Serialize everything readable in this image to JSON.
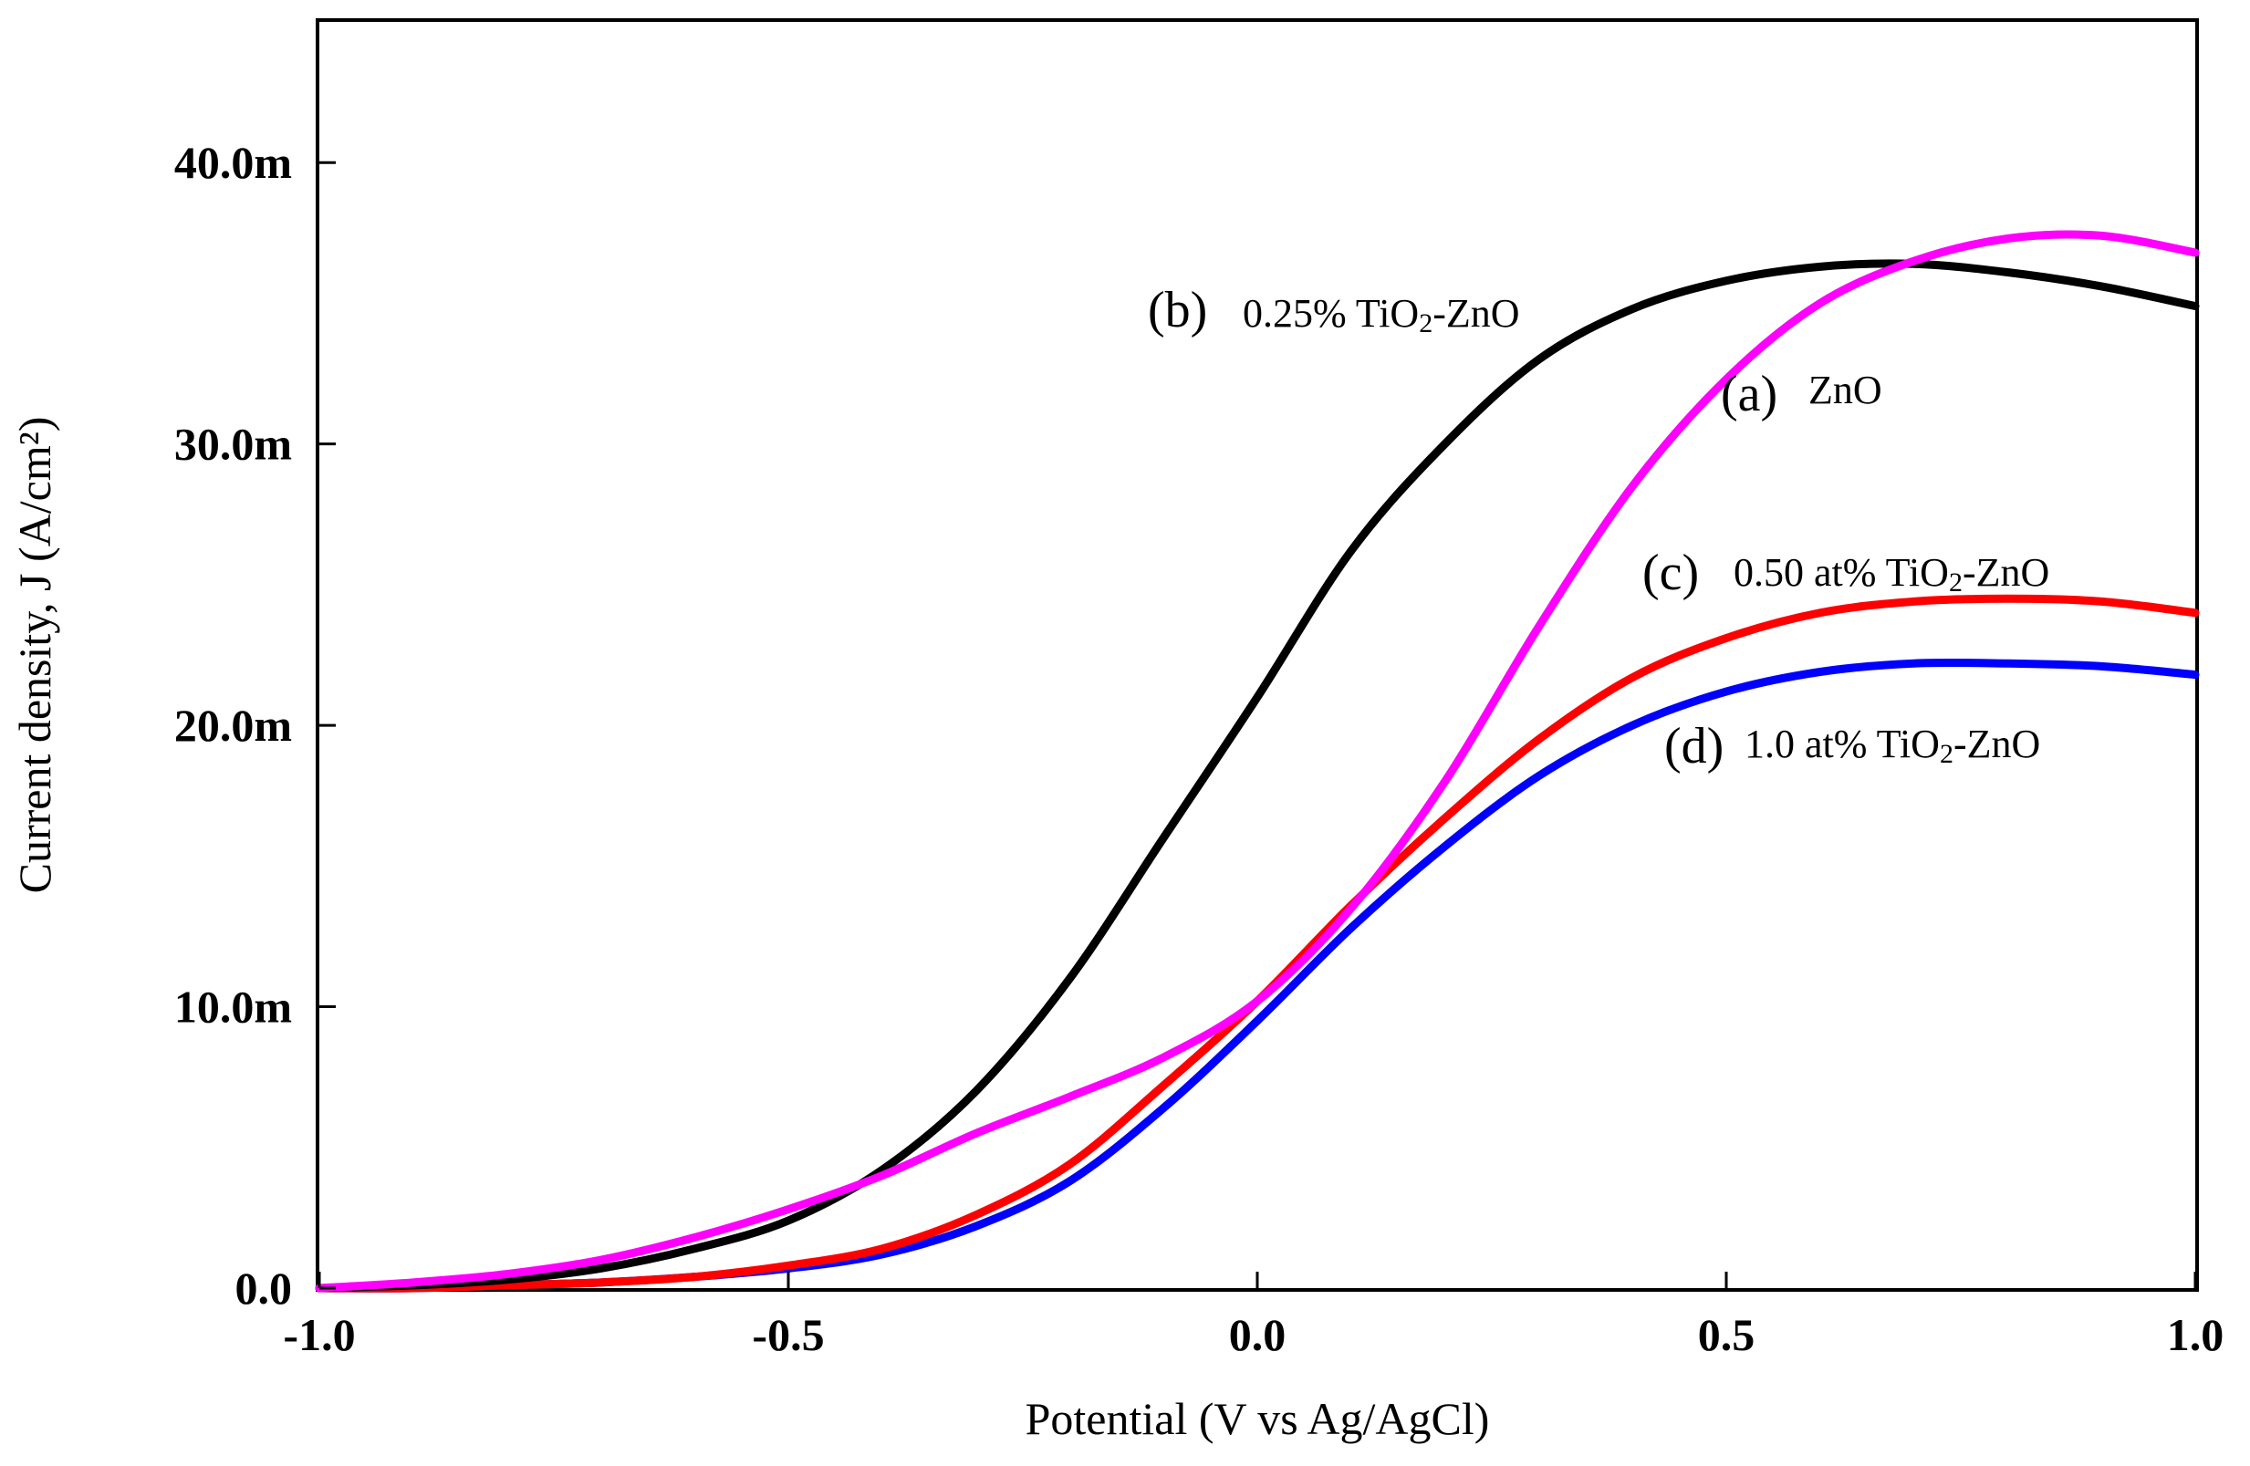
{
  "chart_data": {
    "type": "line",
    "title": "",
    "xlabel": "Potential (V vs Ag/AgCl)",
    "ylabel": "Current density, J (A/cm²)",
    "xlim": [
      -1.0,
      1.0
    ],
    "ylim": [
      0.0,
      0.045
    ],
    "grid": false,
    "x_ticks": [
      {
        "value": -1.0,
        "label": "-1.0"
      },
      {
        "value": -0.5,
        "label": "-0.5"
      },
      {
        "value": 0.0,
        "label": "0.0"
      },
      {
        "value": 0.5,
        "label": "0.5"
      },
      {
        "value": 1.0,
        "label": "1.0"
      }
    ],
    "y_ticks": [
      {
        "value": 0.0,
        "label": "0.0"
      },
      {
        "value": 0.01,
        "label": "10.0m"
      },
      {
        "value": 0.02,
        "label": "20.0m"
      },
      {
        "value": 0.03,
        "label": "30.0m"
      },
      {
        "value": 0.04,
        "label": "40.0m"
      }
    ],
    "series": [
      {
        "id": "a",
        "name": "ZnO",
        "letter": "(a)",
        "label_text": "ZnO",
        "color": "#ff00ff",
        "x": [
          -1.0,
          -0.9,
          -0.8,
          -0.7,
          -0.6,
          -0.5,
          -0.4,
          -0.3,
          -0.2,
          -0.1,
          0.0,
          0.1,
          0.2,
          0.3,
          0.4,
          0.5,
          0.6,
          0.7,
          0.8,
          0.9,
          1.0
        ],
        "y": [
          0.0,
          0.0002,
          0.0005,
          0.001,
          0.0018,
          0.0028,
          0.004,
          0.0055,
          0.0068,
          0.0082,
          0.0102,
          0.0135,
          0.018,
          0.0235,
          0.0285,
          0.0323,
          0.035,
          0.0365,
          0.0373,
          0.0374,
          0.0368
        ]
      },
      {
        "id": "b",
        "name": "0.25% TiO2-ZnO",
        "letter": "(b)",
        "label_text": "0.25% TiO",
        "label_sub": "2",
        "label_suffix": "-ZnO",
        "color": "#000000",
        "x": [
          -1.0,
          -0.9,
          -0.8,
          -0.7,
          -0.6,
          -0.5,
          -0.4,
          -0.3,
          -0.2,
          -0.1,
          0.0,
          0.1,
          0.2,
          0.3,
          0.4,
          0.5,
          0.6,
          0.7,
          0.8,
          0.9,
          1.0
        ],
        "y": [
          0.0,
          0.0001,
          0.0003,
          0.0007,
          0.0014,
          0.0024,
          0.0042,
          0.007,
          0.011,
          0.016,
          0.021,
          0.0262,
          0.03,
          0.033,
          0.0348,
          0.0358,
          0.0363,
          0.0364,
          0.0361,
          0.0356,
          0.0349
        ]
      },
      {
        "id": "c",
        "name": "0.50 at% TiO2-ZnO",
        "letter": "(c)",
        "label_text": "0.50 at% TiO",
        "label_sub": "2",
        "label_suffix": "-ZnO",
        "color": "#ff0000",
        "x": [
          -1.0,
          -0.9,
          -0.8,
          -0.7,
          -0.6,
          -0.5,
          -0.4,
          -0.3,
          -0.2,
          -0.1,
          0.0,
          0.1,
          0.2,
          0.3,
          0.4,
          0.5,
          0.6,
          0.7,
          0.8,
          0.9,
          1.0
        ],
        "y": [
          0.0,
          0.0,
          0.0001,
          0.0002,
          0.0004,
          0.0008,
          0.0014,
          0.0026,
          0.0044,
          0.0072,
          0.0102,
          0.0136,
          0.0167,
          0.0195,
          0.0217,
          0.0231,
          0.024,
          0.0244,
          0.0245,
          0.0244,
          0.024
        ]
      },
      {
        "id": "d",
        "name": "1.0 at% TiO2-ZnO",
        "letter": "(d)",
        "label_text": "1.0 at% TiO",
        "label_sub": "2",
        "label_suffix": "-ZnO",
        "color": "#0000ff",
        "x": [
          -1.0,
          -0.9,
          -0.8,
          -0.7,
          -0.6,
          -0.5,
          -0.4,
          -0.3,
          -0.2,
          -0.1,
          0.0,
          0.1,
          0.2,
          0.3,
          0.4,
          0.5,
          0.6,
          0.7,
          0.8,
          0.9,
          1.0
        ],
        "y": [
          0.0,
          0.0,
          0.0001,
          0.0002,
          0.0004,
          0.0007,
          0.0012,
          0.0022,
          0.0038,
          0.0064,
          0.0095,
          0.0128,
          0.0157,
          0.0182,
          0.02,
          0.0212,
          0.0219,
          0.0222,
          0.0222,
          0.0221,
          0.0218
        ]
      }
    ]
  }
}
